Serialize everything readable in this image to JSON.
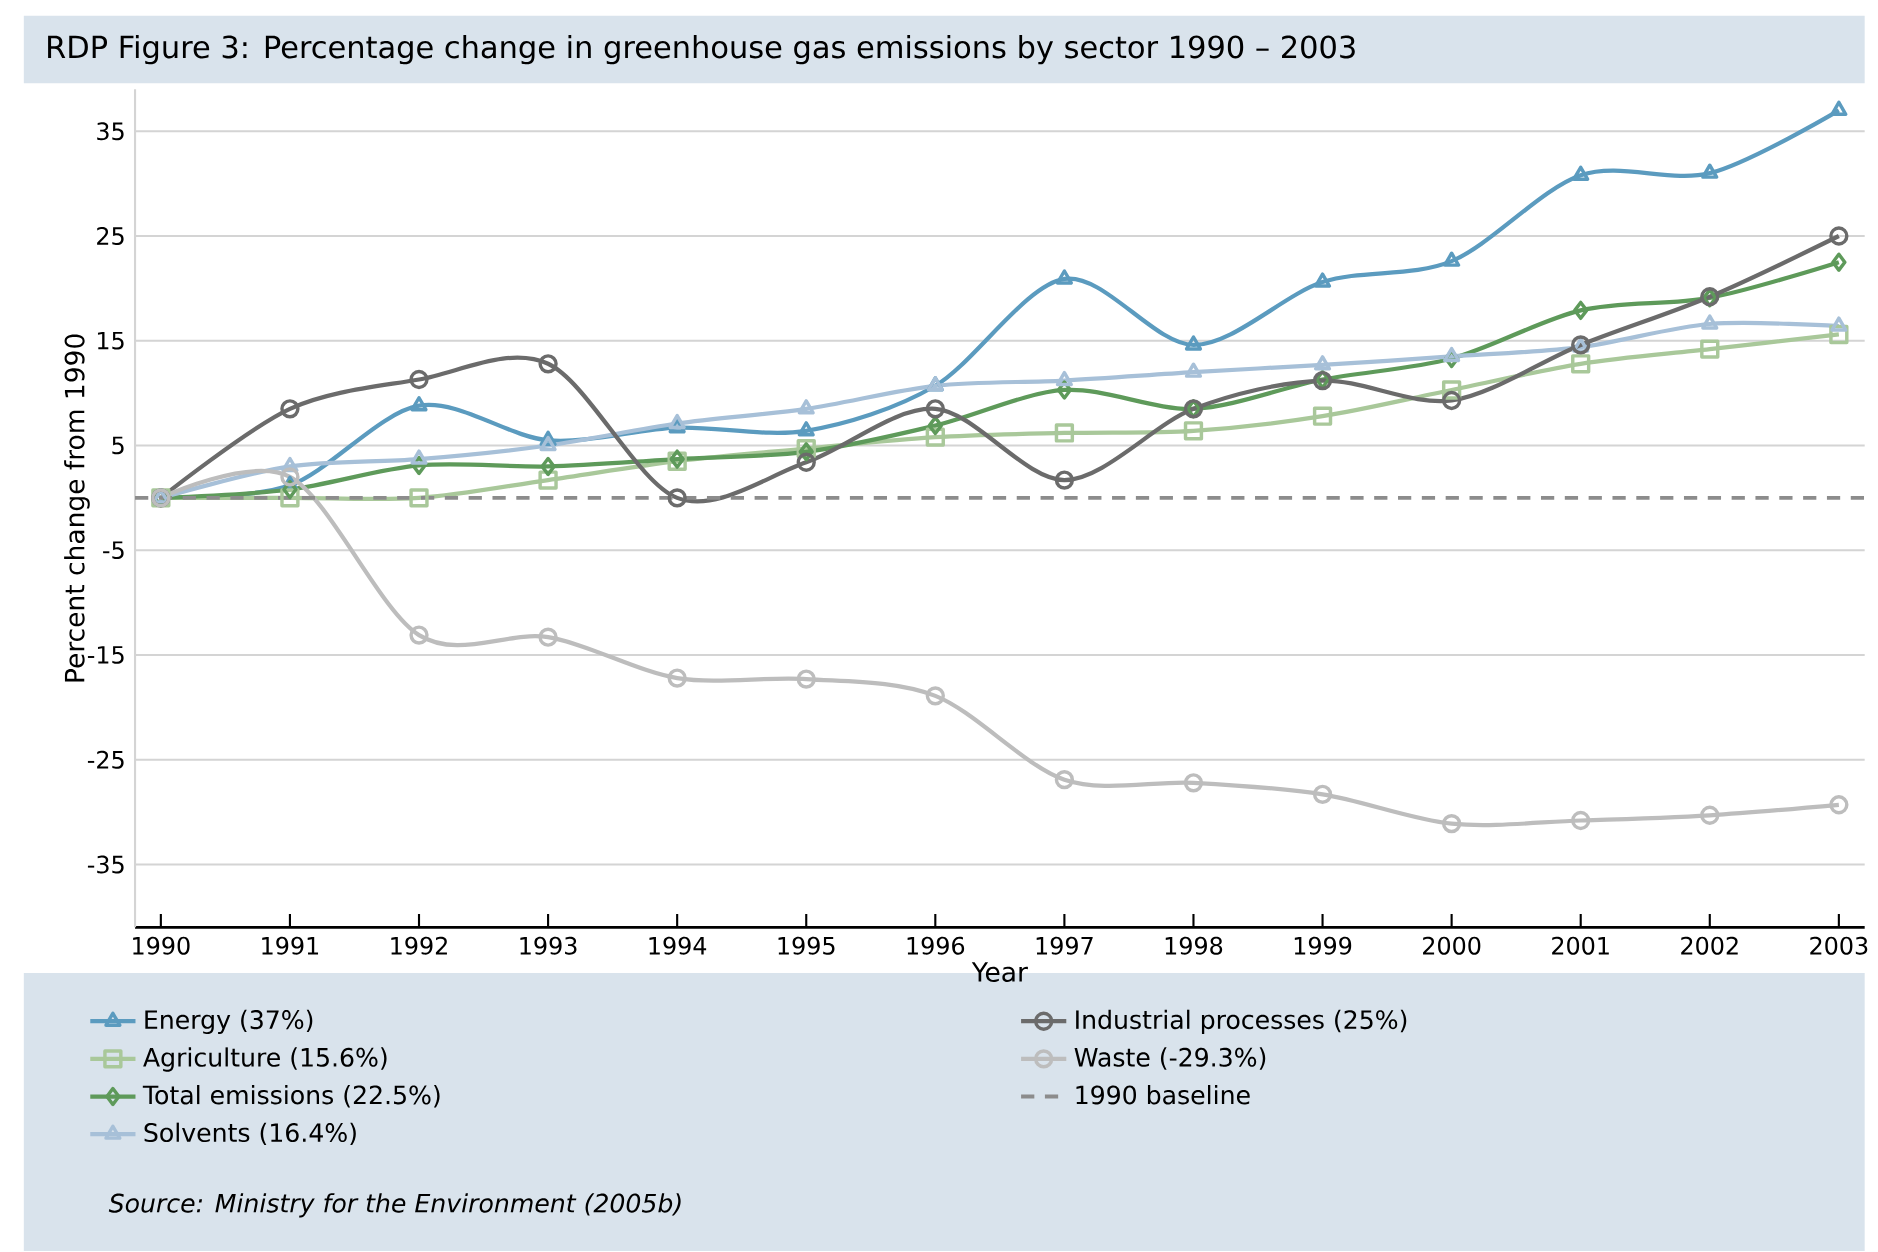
{
  "chart_data": {
    "type": "line",
    "title": "RDP Figure 3: Percentage change in greenhouse gas emissions by sector 1990 – 2003",
    "xlabel": "Year",
    "ylabel": "Percent change from 1990",
    "x": [
      1990,
      1991,
      1992,
      1993,
      1994,
      1995,
      1996,
      1997,
      1998,
      1999,
      2000,
      2001,
      2002,
      2003
    ],
    "series": [
      {
        "name": "Energy (37%)",
        "color": "#5b9bbf",
        "marker": "triangle",
        "values": [
          0,
          1.2,
          8.8,
          5.5,
          6.7,
          6.4,
          10.7,
          20.9,
          14.6,
          20.6,
          22.6,
          30.8,
          31,
          37
        ]
      },
      {
        "name": "Agriculture (15.6%)",
        "color": "#a9c89a",
        "marker": "square",
        "values": [
          0,
          0,
          0,
          1.7,
          3.5,
          4.7,
          5.8,
          6.2,
          6.4,
          7.8,
          10.3,
          12.8,
          14.2,
          15.6
        ]
      },
      {
        "name": "Total emissions (22.5%)",
        "color": "#5e9a5a",
        "marker": "diamond",
        "values": [
          0,
          0.8,
          3.1,
          3.0,
          3.7,
          4.4,
          6.9,
          10.3,
          8.5,
          11.3,
          13.3,
          17.9,
          19.1,
          22.5
        ]
      },
      {
        "name": "Solvents (16.4%)",
        "color": "#a7c0d8",
        "marker": "triangle",
        "values": [
          0,
          3.0,
          3.7,
          5.0,
          7.1,
          8.5,
          10.7,
          11.2,
          12.0,
          12.7,
          13.5,
          14.4,
          16.6,
          16.4
        ]
      },
      {
        "name": "Industrial processes (25%)",
        "color": "#6b6b6b",
        "marker": "circle",
        "values": [
          0,
          8.5,
          11.3,
          12.8,
          0,
          3.4,
          8.5,
          1.7,
          8.5,
          11.2,
          9.3,
          14.6,
          19.2,
          25
        ]
      },
      {
        "name": "Waste (-29.3%)",
        "color": "#bdbdbd",
        "marker": "circle",
        "values": [
          0,
          2.0,
          -13.1,
          -13.3,
          -17.2,
          -17.3,
          -18.9,
          -26.9,
          -27.2,
          -28.3,
          -31.1,
          -30.8,
          -30.3,
          -29.3
        ]
      }
    ],
    "ref_lines": [
      {
        "axis": "y",
        "value": 0,
        "label": "1990 baseline",
        "color": "#8c8c8c",
        "line_style": "dashed"
      }
    ],
    "xlim": [
      1989.8,
      2003.2
    ],
    "ylim": [
      -41,
      39
    ],
    "xticks": [
      1990,
      1991,
      1992,
      1993,
      1994,
      1995,
      1996,
      1997,
      1998,
      1999,
      2000,
      2001,
      2002,
      2003
    ],
    "yticks": [
      -35,
      -25,
      -15,
      -5,
      5,
      15,
      25,
      35
    ],
    "grid": "y",
    "legend": "bottom",
    "line_style": "solid",
    "annotations": [
      "Source: Ministry for the Environment (2005b)"
    ]
  }
}
